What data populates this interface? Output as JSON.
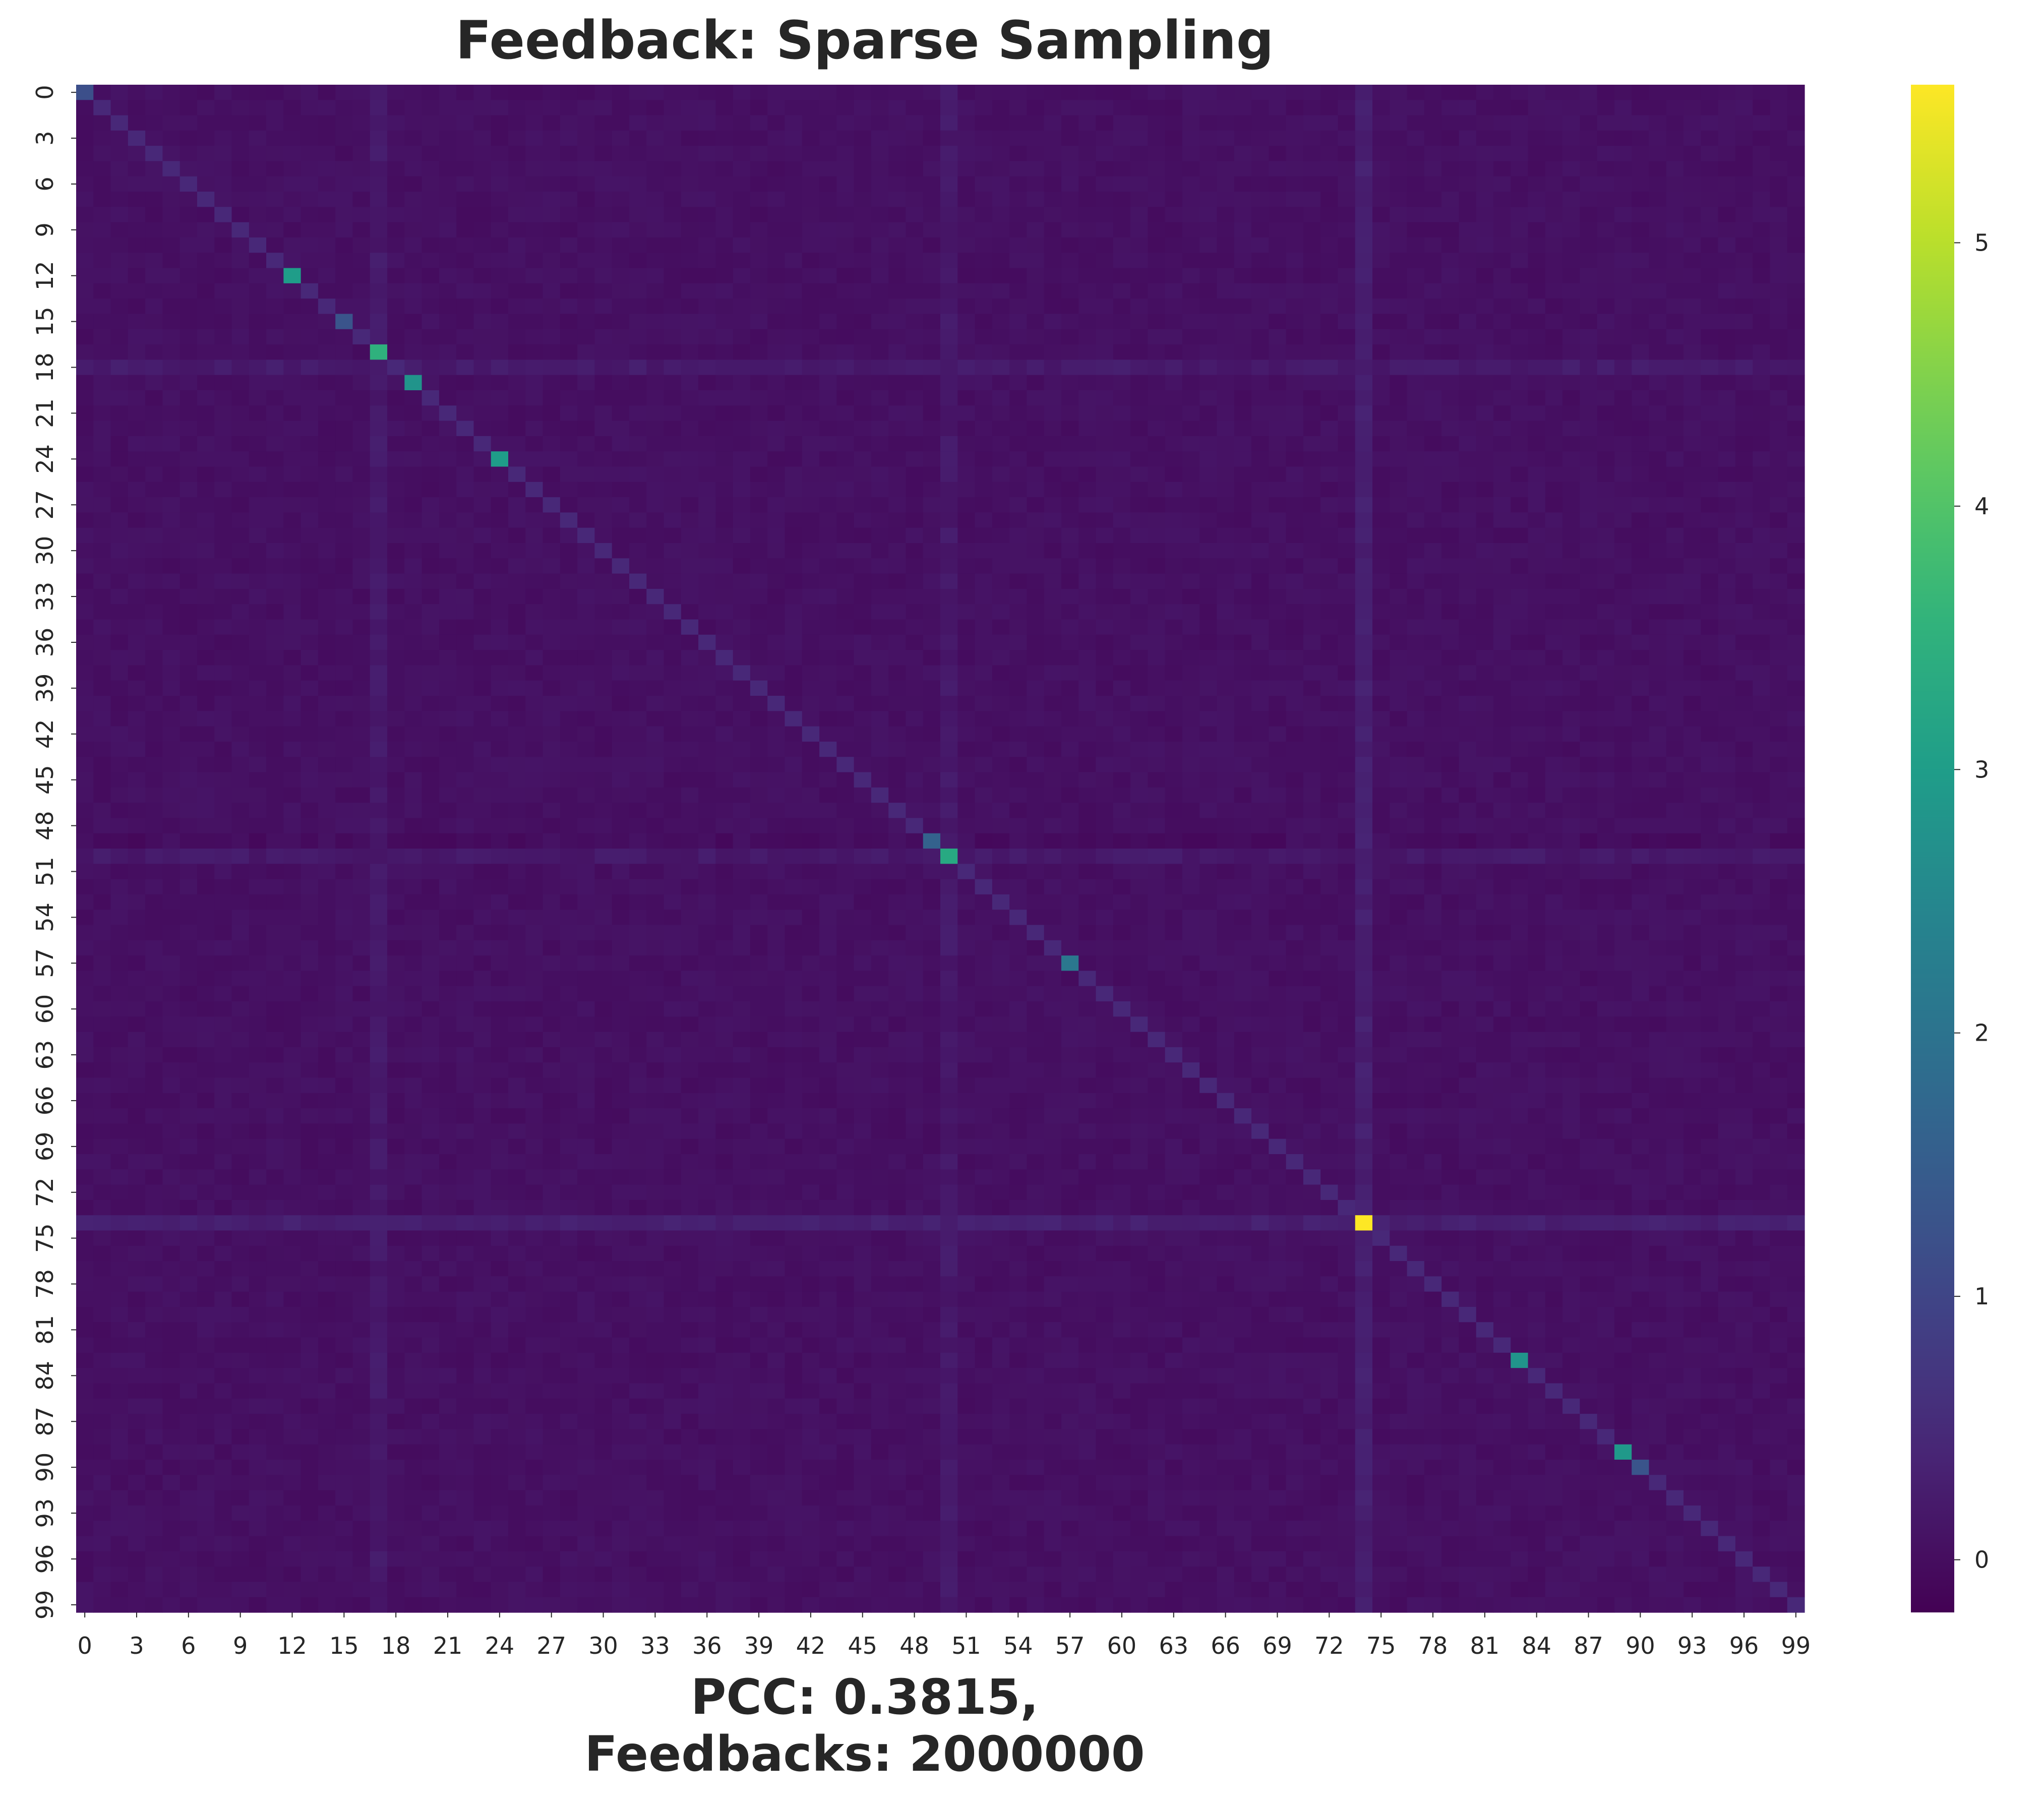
{
  "chart_data": {
    "type": "heatmap",
    "title": "Feedback: Sparse Sampling",
    "xlabel": "PCC: 0.3815,\nFeedbacks: 2000000",
    "ylabel": "",
    "n_rows": 100,
    "n_cols": 100,
    "x_tick_labels": [
      "0",
      "3",
      "6",
      "9",
      "12",
      "15",
      "18",
      "21",
      "24",
      "27",
      "30",
      "33",
      "36",
      "39",
      "42",
      "45",
      "48",
      "51",
      "54",
      "57",
      "60",
      "63",
      "66",
      "69",
      "72",
      "75",
      "78",
      "81",
      "84",
      "87",
      "90",
      "93",
      "96",
      "99"
    ],
    "y_tick_labels": [
      "0",
      "3",
      "6",
      "9",
      "12",
      "15",
      "18",
      "21",
      "24",
      "27",
      "30",
      "33",
      "36",
      "39",
      "42",
      "45",
      "48",
      "51",
      "54",
      "57",
      "60",
      "63",
      "66",
      "69",
      "72",
      "75",
      "78",
      "81",
      "84",
      "87",
      "90",
      "93",
      "96",
      "99"
    ],
    "colormap": "viridis",
    "vmin": -0.2,
    "vmax": 5.6,
    "colorbar_ticks": [
      0,
      1,
      2,
      3,
      4,
      5
    ],
    "colorbar_tick_labels": [
      "0",
      "1",
      "2",
      "3",
      "4",
      "5"
    ],
    "background_value": 0.05,
    "diagonal_default": 0.45,
    "diagonal_highlights": [
      {
        "index": 0,
        "value": 1.2
      },
      {
        "index": 12,
        "value": 3.0
      },
      {
        "index": 15,
        "value": 1.3
      },
      {
        "index": 17,
        "value": 3.5
      },
      {
        "index": 19,
        "value": 2.8
      },
      {
        "index": 24,
        "value": 3.0
      },
      {
        "index": 49,
        "value": 1.6
      },
      {
        "index": 50,
        "value": 3.3
      },
      {
        "index": 57,
        "value": 2.1
      },
      {
        "index": 74,
        "value": 5.6
      },
      {
        "index": 83,
        "value": 2.8
      },
      {
        "index": 89,
        "value": 2.9
      },
      {
        "index": 90,
        "value": 1.3
      }
    ],
    "band_rows": [
      {
        "index": 18,
        "value": 0.22
      },
      {
        "index": 49,
        "value": 0.0
      },
      {
        "index": 50,
        "value": 0.2
      },
      {
        "index": 74,
        "value": 0.3
      }
    ],
    "band_cols": [
      {
        "index": 17,
        "value": 0.2
      },
      {
        "index": 50,
        "value": 0.2
      },
      {
        "index": 74,
        "value": 0.3
      }
    ]
  }
}
